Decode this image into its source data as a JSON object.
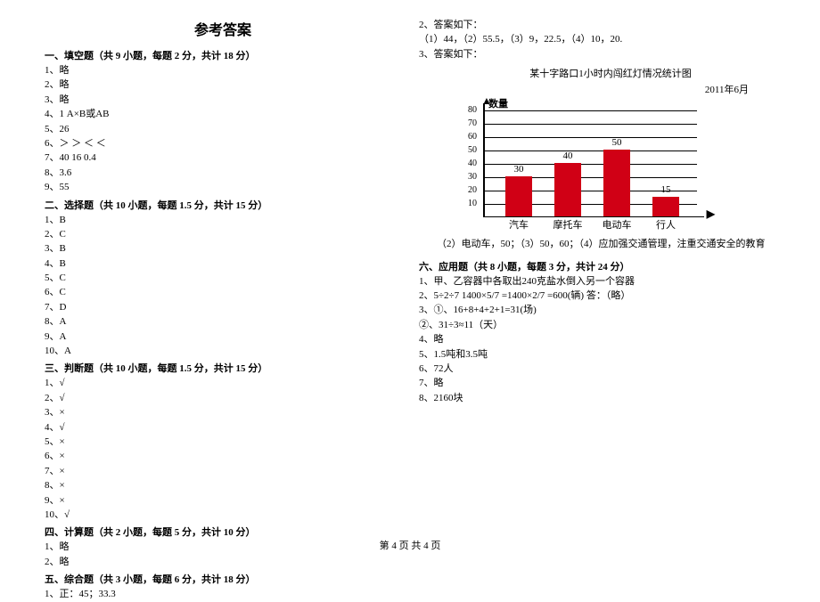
{
  "title": "参考答案",
  "footer": "第 4 页  共 4 页",
  "left": {
    "s1": {
      "header": "一、填空题（共 9 小题，每题 2 分，共计 18 分）",
      "lines": [
        "1、略",
        "2、略",
        "3、略",
        "4、1    A×B或AB",
        "5、26",
        "6、＞    ＞    ＜    ＜",
        "7、40  16    0.4",
        "8、3.6",
        "9、55"
      ]
    },
    "s2": {
      "header": "二、选择题（共 10 小题，每题 1.5 分，共计 15 分）",
      "lines": [
        "1、B",
        "2、C",
        "3、B",
        "4、B",
        "5、C",
        "6、C",
        "7、D",
        "8、A",
        "9、A",
        "10、A"
      ]
    },
    "s3": {
      "header": "三、判断题（共 10 小题，每题 1.5 分，共计 15 分）",
      "lines": [
        "1、√",
        "2、√",
        "3、×",
        "4、√",
        "5、×",
        "6、×",
        "7、×",
        "8、×",
        "9、×",
        "10、√"
      ]
    },
    "s4": {
      "header": "四、计算题（共 2 小题，每题 5 分，共计 10 分）",
      "lines": [
        "1、略",
        "2、略"
      ]
    },
    "s5": {
      "header": "五、综合题（共 3 小题，每题 6 分，共计 18 分）",
      "lines": [
        "1、正：45；33.3"
      ]
    }
  },
  "right": {
    "pre": [
      "2、答案如下：",
      "    （1）44，（2）55.5，（3）9，22.5，（4）10，20.",
      "3、答案如下："
    ],
    "chart": {
      "title": "某十字路口1小时内闯红灯情况统计图",
      "date": "2011年6月",
      "ylabel": "数量",
      "ymax": 80,
      "ystep": 10,
      "grid_color": "#000000",
      "bar_color": "#d00015",
      "categories": [
        "汽车",
        "摩托车",
        "电动车",
        "行人"
      ],
      "values": [
        30,
        40,
        50,
        15
      ]
    },
    "post_chart": "（2）电动车，50；（3）50，60；（4）应加强交通管理，注重交通安全的教育",
    "s6": {
      "header": "六、应用题（共 8 小题，每题 3 分，共计 24 分）",
      "lines": [
        "1、甲、乙容器中各取出240克盐水倒入另一个容器",
        "2、5÷2÷7  1400×5/7  =1400×2/7 =600(辆)  答：（略）",
        "3、①、16+8+4+2+1=31(场)",
        "    ②、31÷3≈11（天）",
        "4、略",
        "5、1.5吨和3.5吨",
        "6、72人",
        "7、略",
        "8、2160块"
      ]
    }
  }
}
